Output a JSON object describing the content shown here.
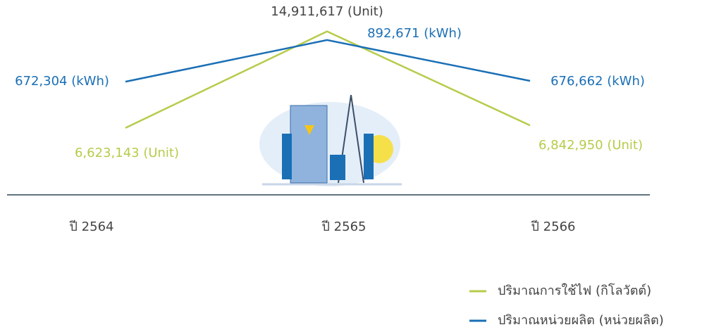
{
  "chart_data": {
    "type": "line",
    "categories": [
      "ปี 2564",
      "ปี 2565",
      "ปี 2566"
    ],
    "series": [
      {
        "name": "ปริมาณการใช้ไฟ (กิโลวัตต์)",
        "color": "#b5cc4a",
        "values": [
          6623143,
          14911617,
          6842950
        ],
        "value_labels": [
          "6,623,143 (Unit)",
          "14,911,617 (Unit)",
          "6,842,950 (Unit)"
        ]
      },
      {
        "name": "ปริมาณหน่วยผลิต (หน่วยผลิต)",
        "color": "#1a6fb5",
        "axis": "y2",
        "values": [
          672304,
          892671,
          676662
        ],
        "value_labels": [
          "672,304 (kWh)",
          "892,671 (kWh)",
          "676,662 (kWh)"
        ]
      }
    ],
    "ylim": [
      1300000,
      16400000
    ],
    "y2lim": [
      100000,
      1030000
    ]
  }
}
